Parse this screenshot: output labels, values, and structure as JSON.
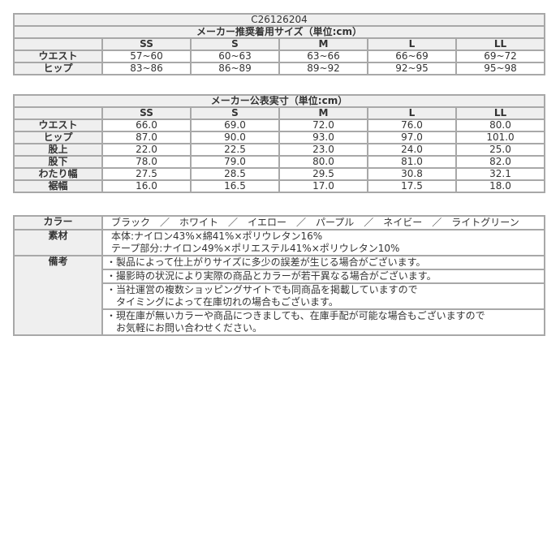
{
  "product_code": "C26126204",
  "recommended": {
    "title": "メーカー推奨着用サイズ（単位:cm）",
    "sizes": [
      "SS",
      "S",
      "M",
      "L",
      "LL"
    ],
    "rows": [
      {
        "label": "ウエスト",
        "values": [
          "57~60",
          "60~63",
          "63~66",
          "66~69",
          "69~72"
        ]
      },
      {
        "label": "ヒップ",
        "values": [
          "83~86",
          "86~89",
          "89~92",
          "92~95",
          "95~98"
        ]
      }
    ]
  },
  "actual": {
    "title": "メーカー公表実寸（単位:cm）",
    "sizes": [
      "SS",
      "S",
      "M",
      "L",
      "LL"
    ],
    "rows": [
      {
        "label": "ウエスト",
        "values": [
          "66.0",
          "69.0",
          "72.0",
          "76.0",
          "80.0"
        ]
      },
      {
        "label": "ヒップ",
        "values": [
          "87.0",
          "90.0",
          "93.0",
          "97.0",
          "101.0"
        ]
      },
      {
        "label": "股上",
        "values": [
          "22.0",
          "22.5",
          "23.0",
          "24.0",
          "25.0"
        ]
      },
      {
        "label": "股下",
        "values": [
          "78.0",
          "79.0",
          "80.0",
          "81.0",
          "82.0"
        ]
      },
      {
        "label": "わたり幅",
        "values": [
          "27.5",
          "28.5",
          "29.5",
          "30.8",
          "32.1"
        ]
      },
      {
        "label": "裾幅",
        "values": [
          "16.0",
          "16.5",
          "17.0",
          "17.5",
          "18.0"
        ]
      }
    ]
  },
  "info": {
    "color_label": "カラー",
    "colors": [
      "ブラック",
      "ホワイト",
      "イエロー",
      "パープル",
      "ネイビー",
      "ライトグリーン"
    ],
    "separator": "／",
    "material_label": "素材",
    "material_lines": [
      "本体:ナイロン43%×綿41%×ポリウレタン16%",
      "テープ部分:ナイロン49%×ポリエステル41%×ポリウレタン10%"
    ],
    "notes_label": "備考",
    "notes": [
      [
        "・製品によって仕上がりサイズに多少の誤差が生じる場合がございます。"
      ],
      [
        "・撮影時の状況により実際の商品とカラーが若干異なる場合がございます。"
      ],
      [
        "・当社運営の複数ショッピングサイトでも同商品を掲載していますので",
        "　タイミングによって在庫切れの場合もございます。"
      ],
      [
        "・現在庫が無いカラーや商品につきましても、在庫手配が可能な場合もございますので",
        "　お気軽にお問い合わせください。"
      ]
    ]
  }
}
